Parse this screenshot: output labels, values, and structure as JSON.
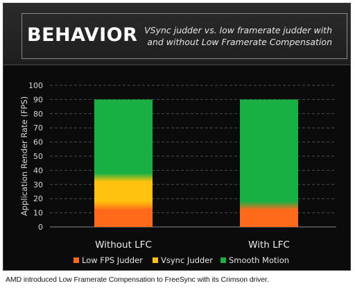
{
  "header": {
    "title": "BEHAVIOR",
    "subtitle_line1": "VSync judder vs. low framerate judder with",
    "subtitle_line2": "and without Low Framerate Compensation"
  },
  "caption": "AMD introduced Low Framerate Compensation to FreeSync with its Crimson driver.",
  "chart_data": {
    "type": "bar",
    "stacked": true,
    "categories": [
      "Without LFC",
      "With LFC"
    ],
    "series": [
      {
        "name": "Low FPS Judder",
        "color": "#ff6a1a",
        "values": [
          15,
          15
        ]
      },
      {
        "name": "Vsync Judder",
        "color": "#ffc20e",
        "values": [
          20,
          0
        ]
      },
      {
        "name": "Smooth Motion",
        "color": "#19b043",
        "values": [
          55,
          75
        ]
      }
    ],
    "ylabel": "Application Render Rate (FPS)",
    "xlabel": "",
    "ylim": [
      0,
      100
    ],
    "yticks": [
      0,
      10,
      20,
      30,
      40,
      50,
      60,
      70,
      80,
      90,
      100
    ],
    "grid": true,
    "legend_position": "bottom"
  }
}
